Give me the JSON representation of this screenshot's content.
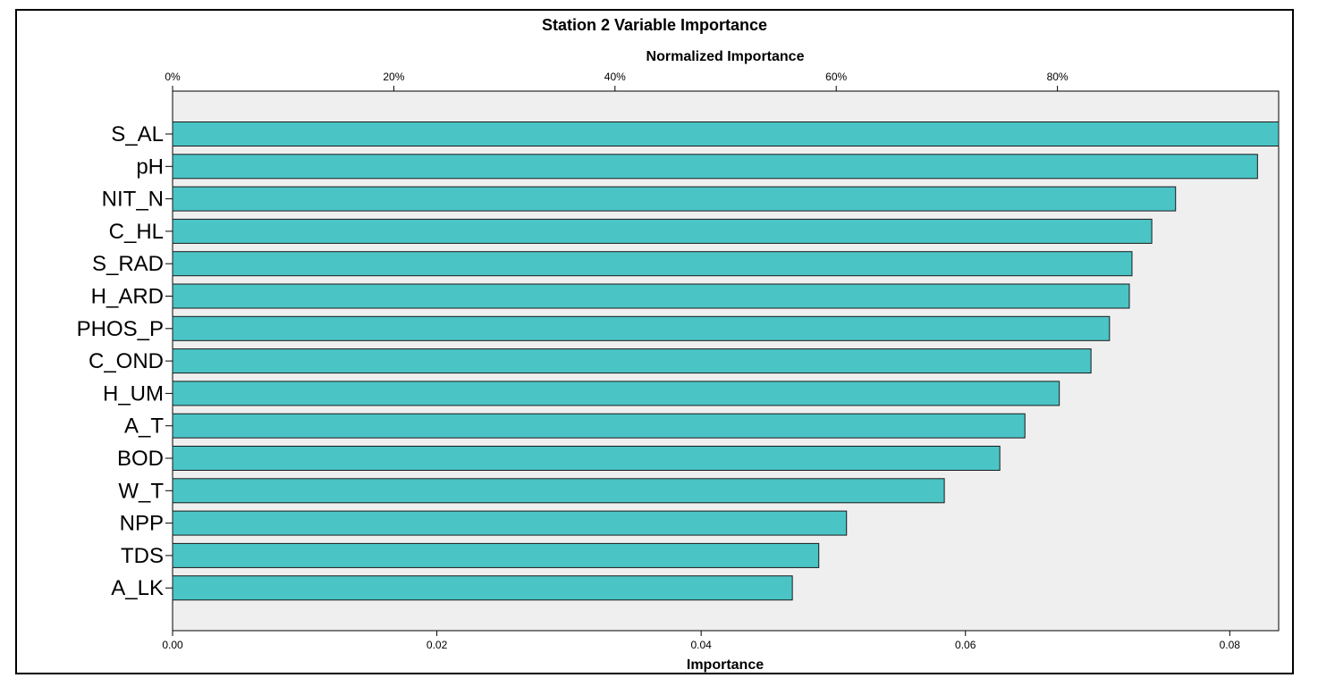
{
  "chart_data": {
    "type": "bar",
    "orientation": "horizontal",
    "title": "Station 2 Variable Importance",
    "xlabel": "Importance",
    "x2label": "Normalized Importance",
    "xlim": [
      0,
      0.0837
    ],
    "x_ticks": [
      "0.00",
      "0.02",
      "0.04",
      "0.06",
      "0.08"
    ],
    "x_tick_values": [
      0,
      0.02,
      0.04,
      0.06,
      0.08
    ],
    "x2_ticks": [
      "0%",
      "20%",
      "40%",
      "60%",
      "80%"
    ],
    "x2_tick_values": [
      0,
      0.01674,
      0.03348,
      0.05022,
      0.06696
    ],
    "categories": [
      "S_AL",
      "pH",
      "NIT_N",
      "C_HL",
      "S_RAD",
      "H_ARD",
      "PHOS_P",
      "C_OND",
      "H_UM",
      "A_T",
      "BOD",
      "W_T",
      "NPP",
      "TDS",
      "A_LK"
    ],
    "values": [
      0.0837,
      0.0821,
      0.0759,
      0.0741,
      0.0726,
      0.0724,
      0.0709,
      0.0695,
      0.0671,
      0.0645,
      0.0626,
      0.0584,
      0.051,
      0.0489,
      0.0469
    ],
    "colors": {
      "bar": "#4bc4c6",
      "bar_stroke": "#1a1a1a",
      "plot_bg": "#efefef"
    },
    "grid": false,
    "legend": "none"
  }
}
